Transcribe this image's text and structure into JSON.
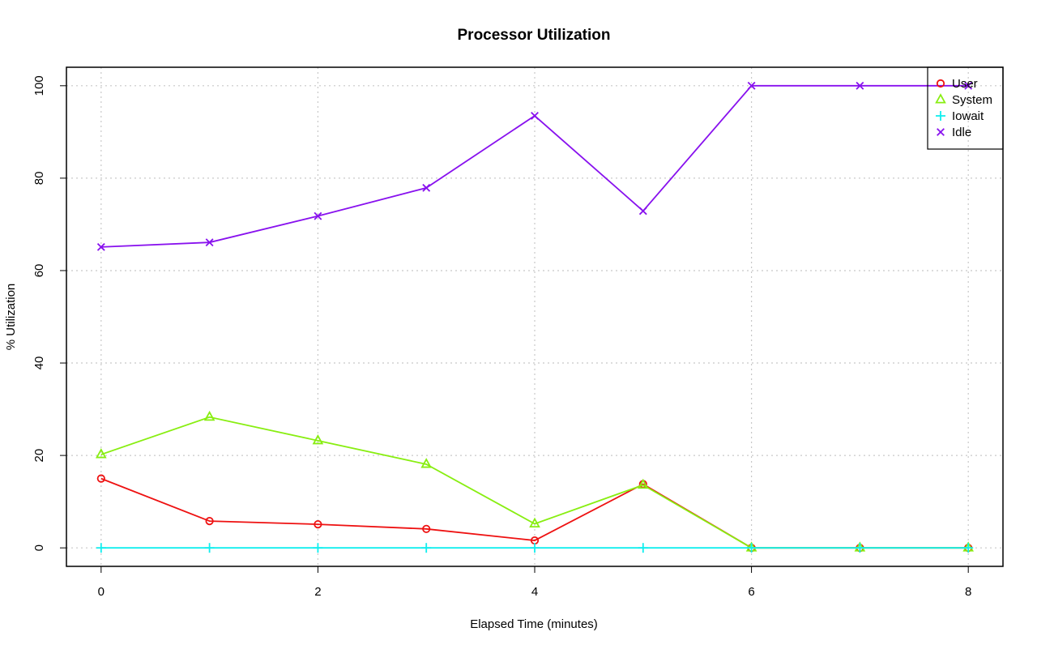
{
  "chart_data": {
    "type": "line",
    "title": "Processor Utilization",
    "xlabel": "Elapsed Time (minutes)",
    "ylabel": "% Utilization",
    "x": [
      0,
      1,
      2,
      3,
      4,
      5,
      6,
      7,
      8
    ],
    "xlim": [
      -0.32,
      8.32
    ],
    "ylim": [
      -4,
      104
    ],
    "xticks": [
      0,
      2,
      4,
      6,
      8
    ],
    "yticks": [
      0,
      20,
      40,
      60,
      80,
      100
    ],
    "grid": true,
    "legend_position": "top-right",
    "series": [
      {
        "name": "User",
        "marker": "circle",
        "color": "#ee1111",
        "values": [
          15,
          5.8,
          5.1,
          4.1,
          1.6,
          13.8,
          0,
          0,
          0
        ]
      },
      {
        "name": "System",
        "marker": "triangle",
        "color": "#88ee11",
        "values": [
          20.2,
          28.3,
          23.2,
          18.1,
          5.2,
          13.6,
          0,
          0,
          0
        ]
      },
      {
        "name": "Iowait",
        "marker": "plus",
        "color": "#11eeee",
        "values": [
          0,
          0,
          0,
          0,
          0,
          0,
          0,
          0,
          0
        ]
      },
      {
        "name": "Idle",
        "marker": "cross",
        "color": "#8811ee",
        "values": [
          65.1,
          66.1,
          71.8,
          77.9,
          93.5,
          72.9,
          100,
          100,
          100
        ]
      }
    ]
  }
}
